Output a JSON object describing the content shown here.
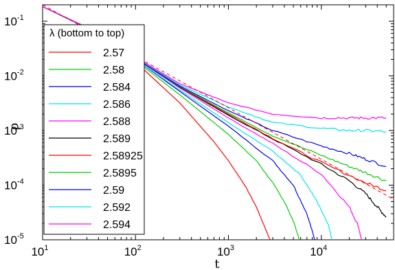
{
  "chart_data": {
    "type": "line",
    "xlabel": "t",
    "ylabel": "ρ",
    "xscale": "log",
    "yscale": "log",
    "xlim": [
      10,
      60000
    ],
    "ylim": [
      1e-05,
      0.2
    ],
    "grid": false,
    "legend": {
      "title": "λ (bottom to top)",
      "placement": "top-left"
    },
    "x_ticks": [
      {
        "base": "10",
        "exp": "1",
        "value": 10
      },
      {
        "base": "10",
        "exp": "2",
        "value": 100
      },
      {
        "base": "10",
        "exp": "3",
        "value": 1000
      },
      {
        "base": "10",
        "exp": "4",
        "value": 10000
      }
    ],
    "y_ticks": [
      {
        "base": "10",
        "exp": "-1",
        "value": 0.1
      },
      {
        "base": "10",
        "exp": "-2",
        "value": 0.01
      },
      {
        "base": "10",
        "exp": "-3",
        "value": 0.001
      },
      {
        "base": "10",
        "exp": "-4",
        "value": 0.0001
      },
      {
        "base": "10",
        "exp": "-5",
        "value": 1e-05
      }
    ],
    "reference_line": {
      "color": "#ff0000",
      "style": "dashed",
      "x": [
        10,
        60000
      ],
      "y": [
        0.2,
        5.5e-05
      ]
    },
    "series": [
      {
        "name": "2.57",
        "color": "#ff0000",
        "x": [
          10,
          30,
          100,
          300,
          700,
          1000,
          1500,
          2000,
          2500,
          2800
        ],
        "y": [
          0.185,
          0.075,
          0.018,
          0.0032,
          0.00062,
          0.00028,
          0.0001,
          4e-05,
          1.6e-05,
          1e-05
        ]
      },
      {
        "name": "2.58",
        "color": "#00cc00",
        "x": [
          10,
          30,
          100,
          300,
          1000,
          2000,
          3000,
          4000,
          5000,
          5800
        ],
        "y": [
          0.185,
          0.075,
          0.019,
          0.0045,
          0.00085,
          0.00028,
          0.00011,
          5e-05,
          2.2e-05,
          1e-05
        ]
      },
      {
        "name": "2.584",
        "color": "#0000ee",
        "x": [
          10,
          30,
          100,
          300,
          1000,
          3000,
          5000,
          7000,
          8500
        ],
        "y": [
          0.185,
          0.076,
          0.02,
          0.0052,
          0.0012,
          0.00028,
          0.0001,
          3e-05,
          1e-05
        ]
      },
      {
        "name": "2.586",
        "color": "#00e5e5",
        "x": [
          10,
          30,
          100,
          300,
          1000,
          3000,
          6000,
          9000,
          12000,
          13000
        ],
        "y": [
          0.185,
          0.076,
          0.02,
          0.0055,
          0.0014,
          0.00042,
          0.00015,
          5e-05,
          1.8e-05,
          1e-05
        ]
      },
      {
        "name": "2.588",
        "color": "#ff00ff",
        "x": [
          10,
          30,
          100,
          300,
          1000,
          3000,
          10000,
          20000,
          25000,
          27000
        ],
        "y": [
          0.185,
          0.077,
          0.021,
          0.006,
          0.0017,
          0.00058,
          0.00016,
          4e-05,
          1.8e-05,
          1e-05
        ]
      },
      {
        "name": "2.589",
        "color": "#000000",
        "x": [
          10,
          30,
          100,
          300,
          1000,
          3000,
          10000,
          20000,
          30000,
          40000,
          50000
        ],
        "y": [
          0.185,
          0.077,
          0.021,
          0.0062,
          0.0019,
          0.0007,
          0.00024,
          0.00012,
          7e-05,
          4e-05,
          2.6e-05
        ]
      },
      {
        "name": "2.58925",
        "color": "#ff0000",
        "x": [
          10,
          30,
          100,
          300,
          1000,
          3000,
          10000,
          30000,
          50000
        ],
        "y": [
          0.185,
          0.077,
          0.021,
          0.0063,
          0.002,
          0.00072,
          0.00026,
          0.00011,
          8e-05
        ]
      },
      {
        "name": "2.5895",
        "color": "#00cc00",
        "x": [
          10,
          30,
          100,
          300,
          1000,
          3000,
          10000,
          20000,
          30000,
          50000
        ],
        "y": [
          0.185,
          0.077,
          0.021,
          0.0064,
          0.0021,
          0.0008,
          0.00035,
          0.00022,
          0.00017,
          0.00012
        ]
      },
      {
        "name": "2.59",
        "color": "#0000ee",
        "x": [
          10,
          30,
          100,
          300,
          1000,
          3000,
          10000,
          20000,
          30000,
          50000
        ],
        "y": [
          0.185,
          0.077,
          0.021,
          0.0065,
          0.0023,
          0.001,
          0.00052,
          0.00038,
          0.0003,
          0.00022
        ]
      },
      {
        "name": "2.592",
        "color": "#00e5e5",
        "x": [
          10,
          30,
          100,
          300,
          1000,
          3000,
          10000,
          20000,
          30000,
          50000
        ],
        "y": [
          0.185,
          0.077,
          0.022,
          0.0068,
          0.0027,
          0.0014,
          0.0011,
          0.001,
          0.001,
          0.00095
        ]
      },
      {
        "name": "2.594",
        "color": "#ff00ff",
        "x": [
          10,
          30,
          100,
          300,
          1000,
          3000,
          10000,
          20000,
          30000,
          50000
        ],
        "y": [
          0.185,
          0.078,
          0.022,
          0.0072,
          0.0032,
          0.002,
          0.0017,
          0.0017,
          0.0017,
          0.0017
        ]
      }
    ]
  }
}
